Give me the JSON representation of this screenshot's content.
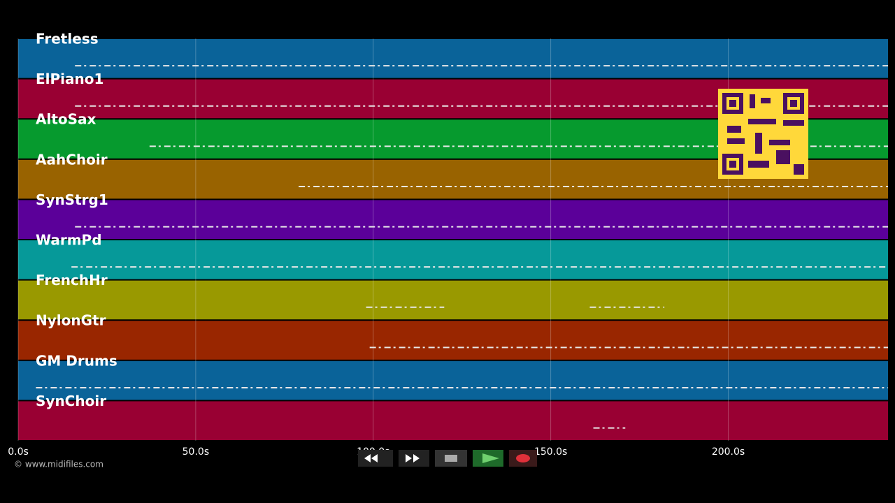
{
  "chart_data": {
    "type": "pianoroll",
    "tracks": [
      {
        "name": "Fretless",
        "color": "#0a6399",
        "notes": [
          [
            16,
            245
          ]
        ]
      },
      {
        "name": "ElPiano1",
        "color": "#990033",
        "notes": [
          [
            16,
            245
          ]
        ]
      },
      {
        "name": "AltoSax",
        "color": "#069a2e",
        "notes": [
          [
            37,
            245
          ]
        ]
      },
      {
        "name": "AahChoir",
        "color": "#996300",
        "notes": [
          [
            79,
            245
          ]
        ]
      },
      {
        "name": "SynStrg1",
        "color": "#5b0099",
        "notes": [
          [
            16,
            245
          ]
        ]
      },
      {
        "name": "WarmPd",
        "color": "#069999",
        "notes": [
          [
            15,
            245
          ]
        ]
      },
      {
        "name": "FrenchHr",
        "color": "#999900",
        "notes": [
          [
            98,
            120
          ],
          [
            161,
            182
          ]
        ]
      },
      {
        "name": "NylonGtr",
        "color": "#992600",
        "notes": [
          [
            99,
            245
          ]
        ]
      },
      {
        "name": "GM Drums",
        "color": "#0a6399",
        "notes": [
          [
            5,
            245
          ]
        ]
      },
      {
        "name": "SynChoir",
        "color": "#990033",
        "notes": [
          [
            162,
            171
          ]
        ]
      }
    ],
    "xlim": [
      0,
      245
    ],
    "xticks": [
      {
        "value": 0,
        "label": "0.0s"
      },
      {
        "value": 50,
        "label": "50.0s"
      },
      {
        "value": 100,
        "label": "100.0s"
      },
      {
        "value": 150,
        "label": "150.0s"
      },
      {
        "value": 200,
        "label": "200.0s"
      }
    ],
    "grid": true
  },
  "footer": {
    "copyright": "© www.midifiles.com"
  }
}
